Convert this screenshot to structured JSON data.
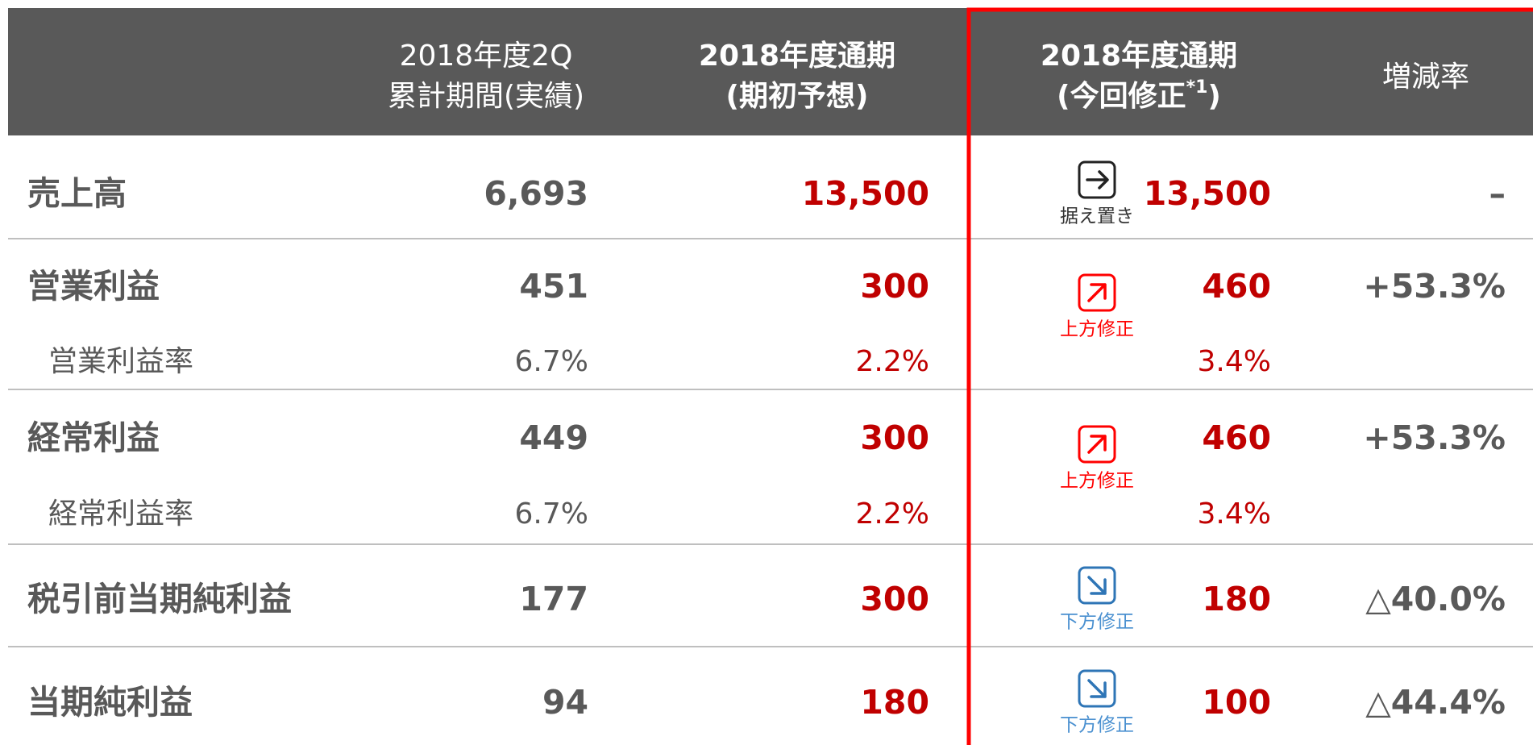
{
  "header": {
    "columns": [
      {
        "lines": [
          {
            "text": "2018年度2Q"
          },
          {
            "text": "累計期間(実績)"
          }
        ],
        "bold": false
      },
      {
        "lines": [
          {
            "text": "2018年度通期"
          },
          {
            "text": "(期初予想)"
          }
        ],
        "bold": true
      },
      {
        "lines": [
          {
            "text": "2018年度通期"
          },
          {
            "text": "(今回修正",
            "sup": "*1",
            "after": ")"
          }
        ],
        "bold": true
      },
      {
        "lines": [
          {
            "text": "増減率"
          }
        ],
        "bold": false
      }
    ]
  },
  "table": {
    "rows": [
      {
        "label": "売上高",
        "actual": "6,693",
        "initial": "13,500",
        "badge": {
          "label": "据え置き",
          "direction": "flat",
          "color": "#222222",
          "label_color": "#333333"
        },
        "revised": "13,500",
        "change": "–"
      },
      {
        "label": "営業利益",
        "actual": "451",
        "initial": "300",
        "badge": {
          "label": "上方修正",
          "direction": "up",
          "color": "#ff0000",
          "label_color": "#ff0000"
        },
        "revised": "460",
        "change": "+53.3%",
        "sub": {
          "label": "営業利益率",
          "actual": "6.7%",
          "initial": "2.2%",
          "revised": "3.4%"
        }
      },
      {
        "label": "経常利益",
        "actual": "449",
        "initial": "300",
        "badge": {
          "label": "上方修正",
          "direction": "up",
          "color": "#ff0000",
          "label_color": "#ff0000"
        },
        "revised": "460",
        "change": "+53.3%",
        "sub": {
          "label": "経常利益率",
          "actual": "6.7%",
          "initial": "2.2%",
          "revised": "3.4%"
        }
      },
      {
        "label": "税引前当期純利益",
        "actual": "177",
        "initial": "300",
        "badge": {
          "label": "下方修正",
          "direction": "down",
          "color": "#2e75b6",
          "label_color": "#4a90d0"
        },
        "revised": "180",
        "change": "△40.0%"
      },
      {
        "label": "当期純利益",
        "actual": "94",
        "initial": "180",
        "badge": {
          "label": "下方修正",
          "direction": "down",
          "color": "#2e75b6",
          "label_color": "#4a90d0"
        },
        "revised": "100",
        "change": "△44.4%"
      }
    ]
  }
}
